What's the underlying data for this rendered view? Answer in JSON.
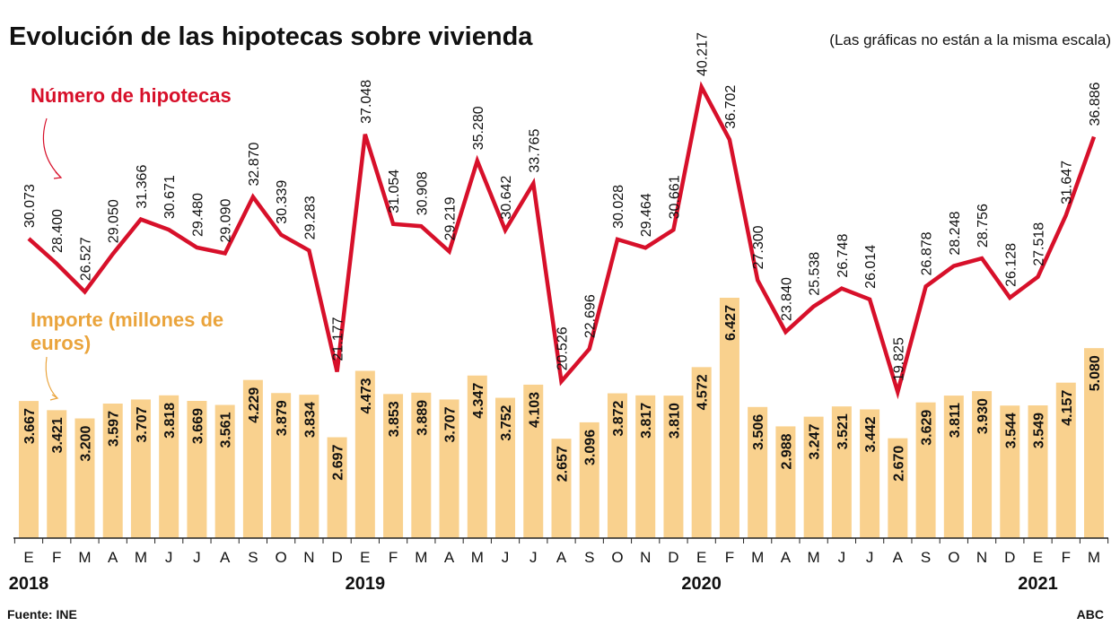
{
  "chart_data": {
    "type": "bar-line",
    "title": "Evolución de las hipotecas sobre vivienda",
    "note": "(Las gráficas no están a la misma escala)",
    "categories": [
      "E",
      "F",
      "M",
      "A",
      "M",
      "J",
      "J",
      "A",
      "S",
      "O",
      "N",
      "D",
      "E",
      "F",
      "M",
      "A",
      "M",
      "J",
      "J",
      "A",
      "S",
      "O",
      "N",
      "D",
      "E",
      "F",
      "M",
      "A",
      "M",
      "J",
      "J",
      "A",
      "S",
      "O",
      "N",
      "D",
      "E",
      "F",
      "M"
    ],
    "years": [
      "2018",
      "2019",
      "2020",
      "2021"
    ],
    "series": [
      {
        "name": "Número de hipotecas",
        "type": "line",
        "color": "#d7102a",
        "values": [
          30073,
          28400,
          26527,
          29050,
          31366,
          30671,
          29480,
          29090,
          32870,
          30339,
          29283,
          21177,
          37048,
          31054,
          30908,
          29219,
          35280,
          30642,
          33765,
          20526,
          22696,
          30028,
          29464,
          30661,
          40217,
          36702,
          27300,
          23840,
          25538,
          26748,
          26014,
          19825,
          26878,
          28248,
          28756,
          26128,
          27518,
          31647,
          36886
        ],
        "value_labels": [
          "30.073",
          "28.400",
          "26.527",
          "29.050",
          "31.366",
          "30.671",
          "29.480",
          "29.090",
          "32.870",
          "30.339",
          "29.283",
          "21.177",
          "37.048",
          "31.054",
          "30.908",
          "29.219",
          "35.280",
          "30.642",
          "33.765",
          "20.526",
          "22.696",
          "30.028",
          "29.464",
          "30.661",
          "40.217",
          "36.702",
          "27.300",
          "23.840",
          "25.538",
          "26.748",
          "26.014",
          "19.825",
          "26.878",
          "28.248",
          "28.756",
          "26.128",
          "27.518",
          "31.647",
          "36.886"
        ]
      },
      {
        "name": "Importe (millones de euros)",
        "type": "bar",
        "color": "#f9d18e",
        "values": [
          3667,
          3421,
          3200,
          3597,
          3707,
          3818,
          3669,
          3561,
          4229,
          3879,
          3834,
          2697,
          4473,
          3853,
          3889,
          3707,
          4347,
          3752,
          4103,
          2657,
          3096,
          3872,
          3817,
          3810,
          4572,
          6427,
          3506,
          2988,
          3247,
          3521,
          3442,
          2670,
          3629,
          3811,
          3930,
          3544,
          3549,
          4157,
          5080
        ],
        "value_labels": [
          "3.667",
          "3.421",
          "3.200",
          "3.597",
          "3.707",
          "3.818",
          "3.669",
          "3.561",
          "4.229",
          "3.879",
          "3.834",
          "2.697",
          "4.473",
          "3.853",
          "3.889",
          "3.707",
          "4.347",
          "3.752",
          "4.103",
          "2.657",
          "3.096",
          "3.872",
          "3.817",
          "3.810",
          "4.572",
          "6.427",
          "3.506",
          "2.988",
          "3.247",
          "3.521",
          "3.442",
          "2.670",
          "3.629",
          "3.811",
          "3.930",
          "3.544",
          "3.549",
          "4.157",
          "5.080"
        ]
      }
    ],
    "source": "Fuente: INE",
    "brand": "ABC"
  }
}
